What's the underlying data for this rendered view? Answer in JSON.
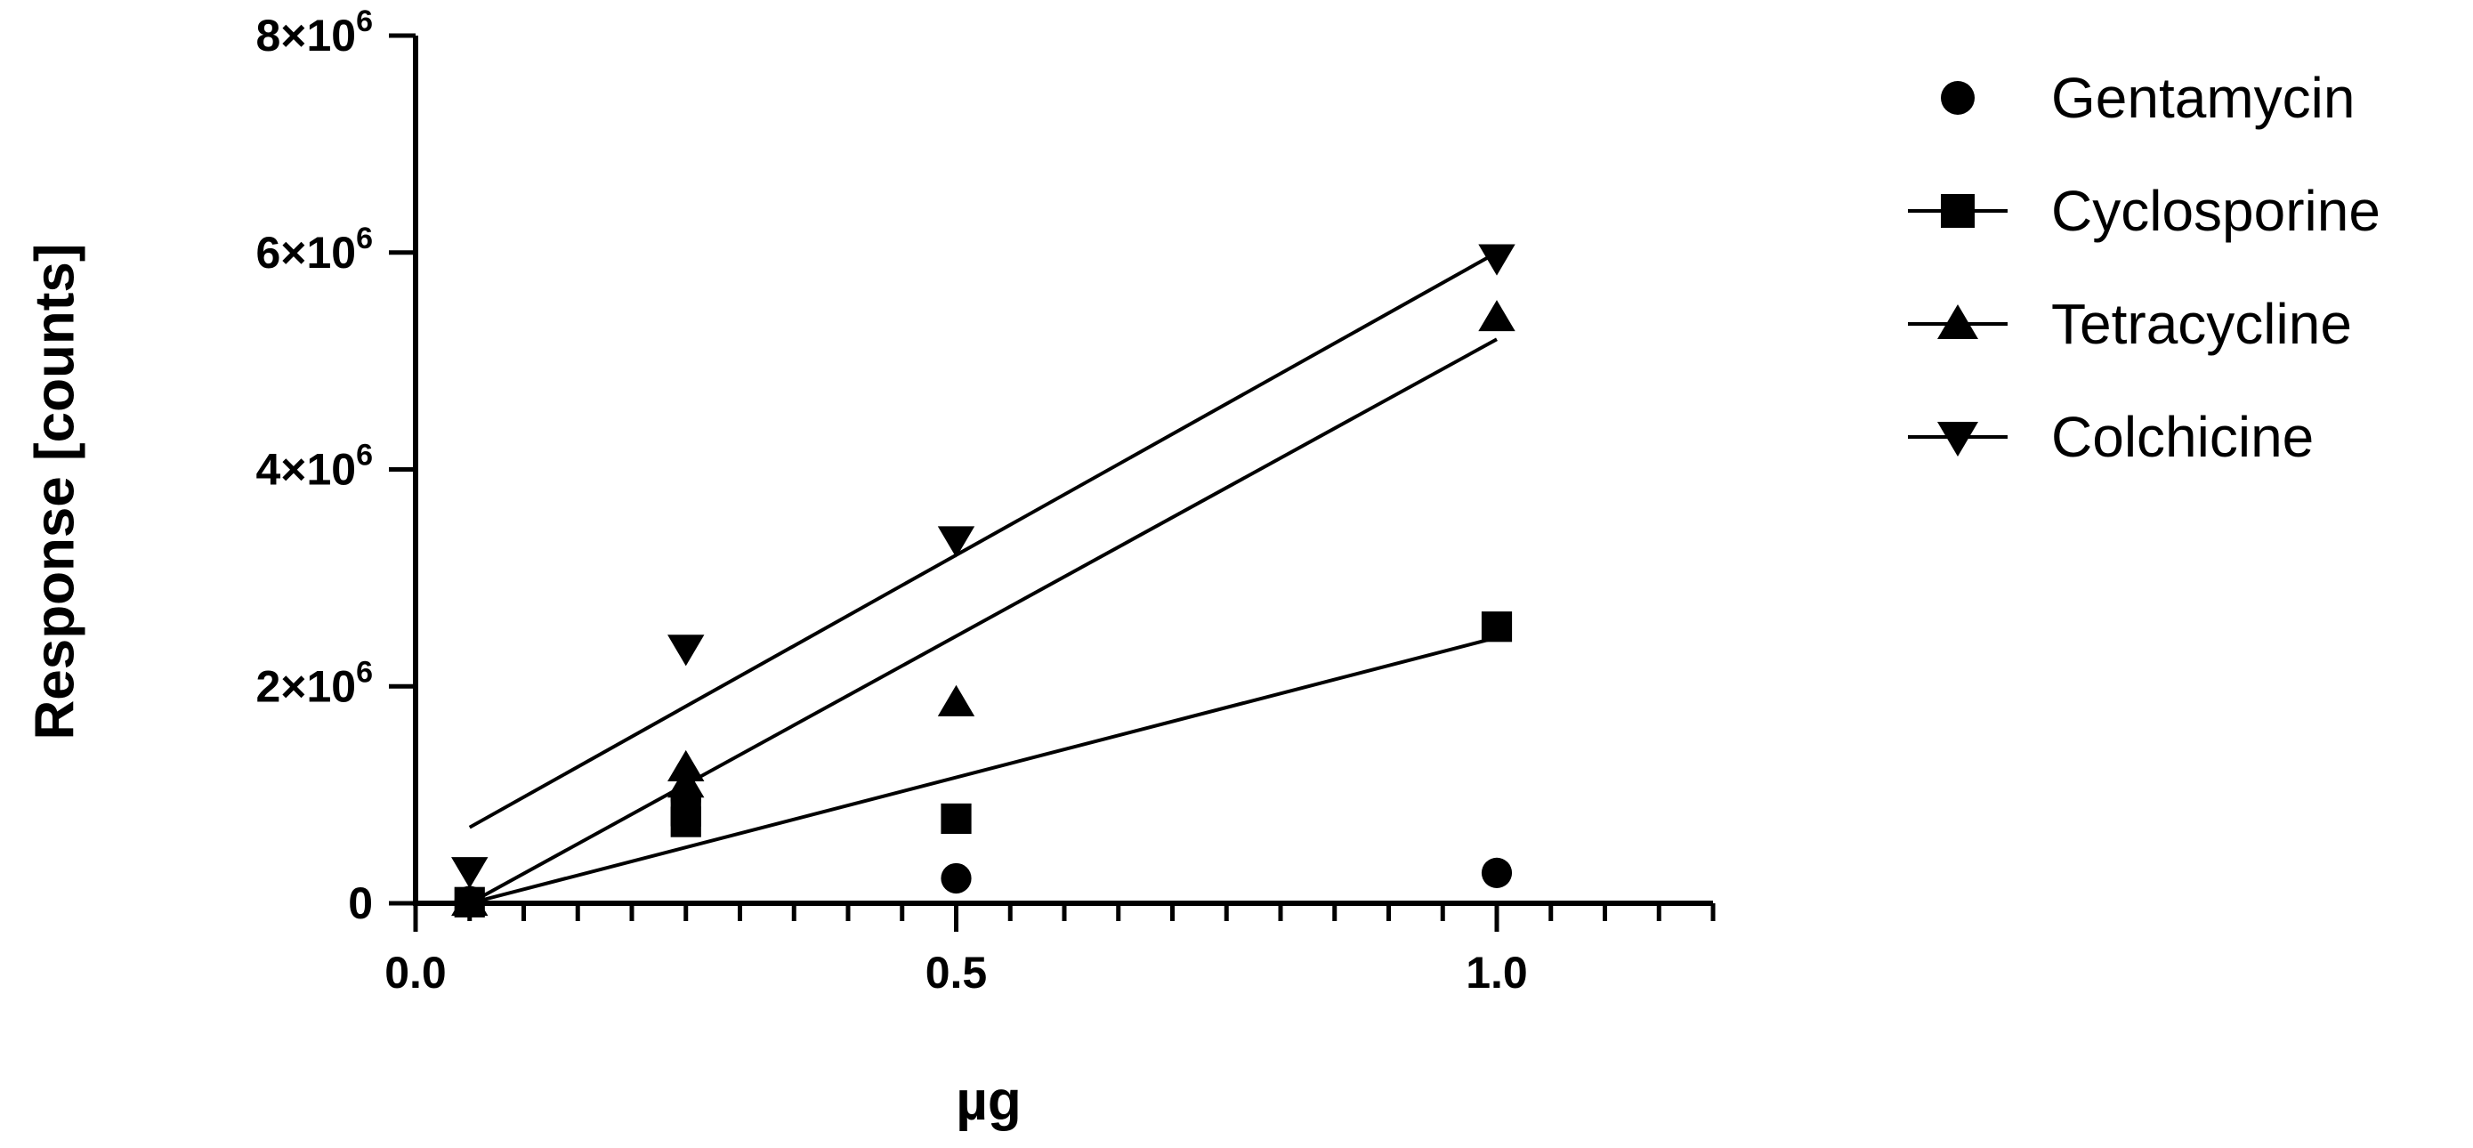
{
  "chart_data": {
    "type": "scatter",
    "xlabel": "µg",
    "ylabel": "Response [counts]",
    "xlim": [
      0.0,
      1.2
    ],
    "ylim": [
      0,
      8000000
    ],
    "x_ticks": [
      {
        "value": 0.0,
        "label": "0.0"
      },
      {
        "value": 0.5,
        "label": "0.5"
      },
      {
        "value": 1.0,
        "label": "1.0"
      }
    ],
    "x_minor_step": 0.05,
    "y_ticks": [
      {
        "value": 0,
        "base": "0",
        "exp": ""
      },
      {
        "value": 2000000,
        "base": "2×10",
        "exp": "6"
      },
      {
        "value": 4000000,
        "base": "4×10",
        "exp": "6"
      },
      {
        "value": 6000000,
        "base": "6×10",
        "exp": "6"
      },
      {
        "value": 8000000,
        "base": "8×10",
        "exp": "6"
      }
    ],
    "grid": false,
    "legend_position": "right",
    "series": [
      {
        "name": "Gentamycin",
        "marker": "circle",
        "x": [
          0.05,
          0.25,
          0.5,
          1.0
        ],
        "y": [
          20000,
          950000,
          230000,
          280000
        ],
        "fit_line": false
      },
      {
        "name": "Cyclosporine",
        "marker": "square",
        "x": [
          0.05,
          0.25,
          0.25,
          0.5,
          1.0
        ],
        "y": [
          10000,
          750000,
          850000,
          780000,
          2550000
        ],
        "fit_line": true,
        "fit": [
          [
            0.05,
            0
          ],
          [
            1.0,
            2450000
          ]
        ]
      },
      {
        "name": "Tetracycline",
        "marker": "triangle-up",
        "x": [
          0.05,
          0.25,
          0.25,
          0.5,
          1.0
        ],
        "y": [
          10000,
          1100000,
          1250000,
          1850000,
          5400000
        ],
        "fit_line": true,
        "fit": [
          [
            0.05,
            0
          ],
          [
            1.0,
            5200000
          ]
        ]
      },
      {
        "name": "Colchicine",
        "marker": "triangle-down",
        "x": [
          0.05,
          0.25,
          0.5,
          1.0
        ],
        "y": [
          300000,
          2350000,
          3350000,
          5950000
        ],
        "fit_line": true,
        "fit": [
          [
            0.05,
            700000
          ],
          [
            1.0,
            6000000
          ]
        ]
      }
    ]
  }
}
